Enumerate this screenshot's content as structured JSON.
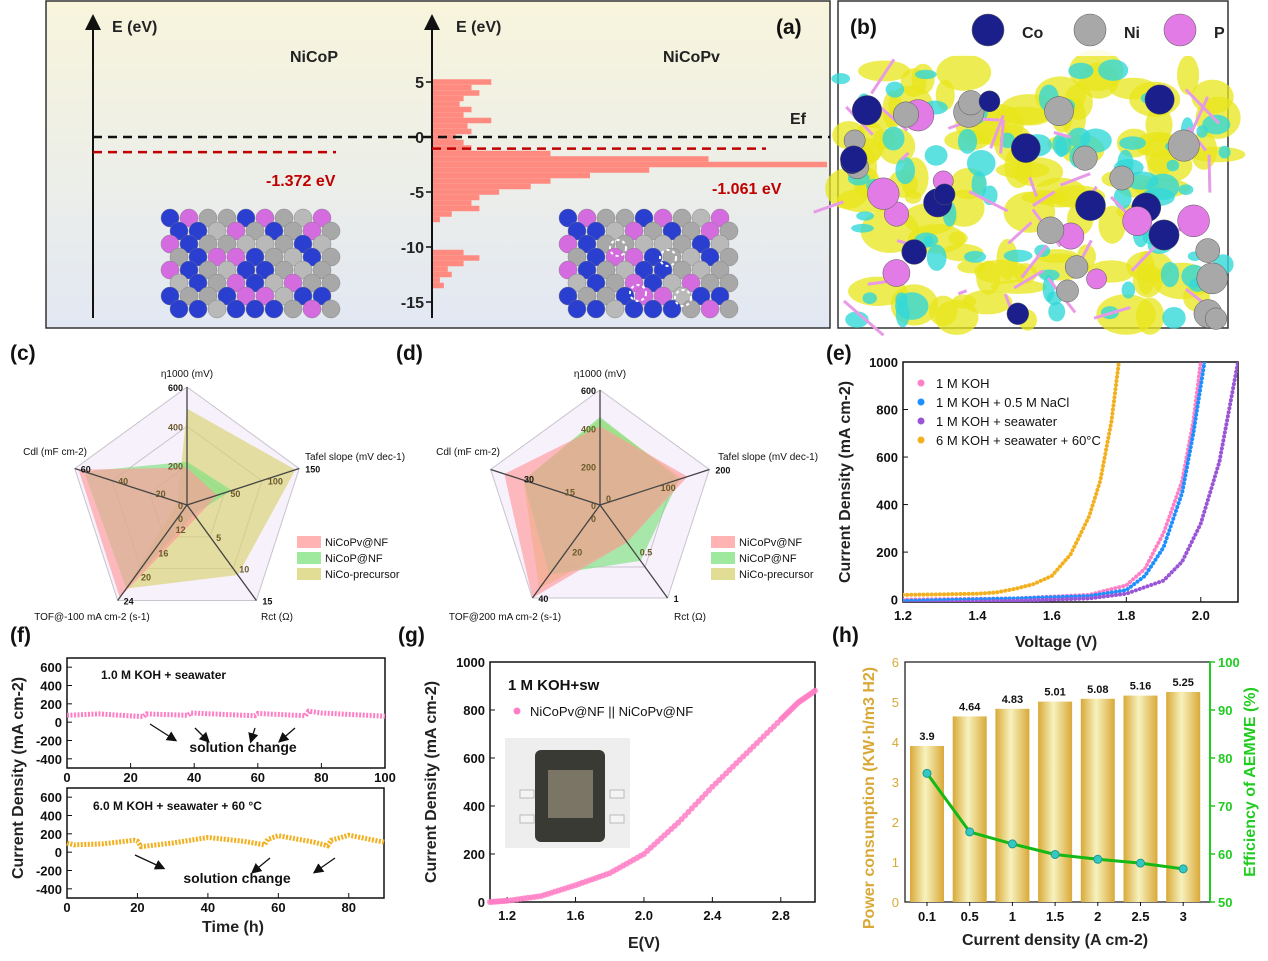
{
  "panel_labels": {
    "a": "(a)",
    "b": "(b)",
    "c": "(c)",
    "d": "(d)",
    "e": "(e)",
    "f": "(f)",
    "g": "(g)",
    "h": "(h)"
  },
  "colors": {
    "pink_dos": "#ff8a80",
    "red_dash": "#c00000",
    "co": "#1a1f8c",
    "ni": "#a8a8a8",
    "p": "#e27be6",
    "ku_orange": "#f2b01e",
    "pink": "#ff7fc6",
    "blue": "#1e8fff",
    "purple": "#9a55d6",
    "green": "#1fcc1f",
    "gold": "#d9a938",
    "teal": "#35c7c1"
  },
  "panel_a": {
    "ylabel_left": "E (eV)",
    "ylabel_right": "E (eV)",
    "title_left": "NiCoP",
    "title_right": "NiCoPv",
    "ef_label": "Ef",
    "value_left": "-1.372 eV",
    "value_right": "-1.061 eV",
    "d_band_center_left": -1.372,
    "d_band_center_right": -1.061,
    "yticks": [
      5,
      0,
      -5,
      -10,
      -15
    ],
    "dos": {
      "energy": [
        5,
        4.5,
        4,
        3.5,
        3,
        2.5,
        2,
        1.5,
        1,
        0.5,
        0,
        -0.5,
        -1,
        -1.5,
        -2,
        -2.5,
        -3,
        -3.5,
        -4,
        -4.5,
        -5,
        -5.5,
        -6,
        -6.5,
        -7,
        -7.5,
        -10.5,
        -11,
        -11.5,
        -12,
        -12.5,
        -13,
        -13.5
      ],
      "intensity": [
        0.15,
        0.1,
        0.12,
        0.08,
        0.07,
        0.1,
        0.08,
        0.15,
        0.09,
        0.1,
        0.06,
        0.08,
        0.1,
        0.3,
        0.7,
        1.0,
        0.55,
        0.4,
        0.3,
        0.25,
        0.17,
        0.12,
        0.1,
        0.12,
        0.05,
        0.02,
        0.08,
        0.12,
        0.08,
        0.04,
        0.05,
        0.02,
        0.03
      ]
    }
  },
  "panel_b": {
    "legend": [
      {
        "label": "Co",
        "color": "#1a1f8c"
      },
      {
        "label": "Ni",
        "color": "#a8a8a8"
      },
      {
        "label": "P",
        "color": "#e27be6"
      }
    ]
  },
  "chart_data": [
    {
      "id": "c",
      "type": "radar",
      "axes": [
        {
          "label": "η1000 (mV)",
          "range": [
            0,
            600
          ],
          "ticks": [
            0,
            200,
            400,
            600
          ]
        },
        {
          "label": "Tafel slope (mV dec-1)",
          "range": [
            0,
            150
          ],
          "ticks": [
            50,
            100,
            150
          ]
        },
        {
          "label": "Rct (Ω)",
          "range": [
            0,
            15
          ],
          "ticks": [
            5,
            10,
            15
          ]
        },
        {
          "label": "TOF@-100  mA cm-2  (s-1)",
          "range": [
            8,
            24
          ],
          "ticks": [
            12,
            16,
            20,
            24
          ]
        },
        {
          "label": "Cdl (mF cm-2)",
          "range": [
            0,
            60
          ],
          "ticks": [
            0,
            20,
            40,
            60
          ]
        }
      ],
      "series": [
        {
          "name": "NiCoPv@NF",
          "color": "#ff9a9a",
          "values": [
            190,
            40,
            2,
            23.5,
            58
          ]
        },
        {
          "name": "NiCoP@NF",
          "color": "#7ee27e",
          "values": [
            220,
            60,
            1.5,
            22,
            55
          ]
        },
        {
          "name": "NiCo-precursor",
          "color": "#d8d270",
          "values": [
            490,
            145,
            11,
            22,
            5
          ]
        }
      ],
      "legend": "right"
    },
    {
      "id": "d",
      "type": "radar",
      "axes": [
        {
          "label": "η1000 (mV)",
          "range": [
            0,
            600
          ],
          "ticks": [
            0,
            200,
            400,
            600
          ]
        },
        {
          "label": "Tafel slope (mV dec-1)",
          "range": [
            0,
            200
          ],
          "ticks": [
            0,
            100,
            200
          ]
        },
        {
          "label": "Rct (Ω)",
          "range": [
            0,
            1.0
          ],
          "ticks": [
            0.5,
            1.0
          ]
        },
        {
          "label": "TOF@200  mA cm-2  (s-1)",
          "range": [
            0,
            40
          ],
          "ticks": [
            20,
            40
          ]
        },
        {
          "label": "Cdl (mF cm-2)",
          "range": [
            0,
            40
          ],
          "ticks": [
            0,
            15,
            30
          ]
        }
      ],
      "series": [
        {
          "name": "NiCoPv@NF",
          "color": "#ff9a9a",
          "values": [
            410,
            160,
            0.4,
            40,
            35
          ]
        },
        {
          "name": "NiCoP@NF",
          "color": "#7ee27e",
          "values": [
            460,
            145,
            0.6,
            30,
            28
          ]
        },
        {
          "name": "NiCo-precursor",
          "color": "#d8d270",
          "values": [
            450,
            150,
            0.4,
            36,
            28
          ]
        }
      ],
      "legend": "right"
    },
    {
      "id": "e",
      "type": "line",
      "xlabel": "Voltage (V)",
      "ylabel": "Current Density (mA cm-2)",
      "xlim": [
        1.2,
        2.1
      ],
      "ylim": [
        0,
        1000
      ],
      "xticks": [
        1.2,
        1.4,
        1.6,
        1.8,
        2.0
      ],
      "yticks": [
        0,
        200,
        400,
        600,
        800,
        1000
      ],
      "series": [
        {
          "name": "1 M KOH",
          "color": "#ff7fc6",
          "x": [
            1.2,
            1.5,
            1.7,
            1.8,
            1.85,
            1.9,
            1.95,
            1.98,
            2.0
          ],
          "y": [
            0,
            5,
            20,
            60,
            130,
            280,
            500,
            750,
            1000
          ]
        },
        {
          "name": "1 M KOH + 0.5 M NaCl",
          "color": "#1e8fff",
          "x": [
            1.2,
            1.5,
            1.7,
            1.8,
            1.85,
            1.9,
            1.95,
            1.98,
            2.01
          ],
          "y": [
            -5,
            5,
            15,
            40,
            100,
            220,
            450,
            700,
            1000
          ]
        },
        {
          "name": "1 M KOH + seawater",
          "color": "#9a55d6",
          "x": [
            1.2,
            1.5,
            1.7,
            1.8,
            1.9,
            1.95,
            2.0,
            2.05,
            2.1
          ],
          "y": [
            -15,
            -5,
            5,
            25,
            80,
            160,
            320,
            580,
            1000
          ]
        },
        {
          "name": "6 M KOH + seawater + 60°C",
          "color": "#f2b01e",
          "x": [
            1.2,
            1.3,
            1.4,
            1.45,
            1.5,
            1.55,
            1.6,
            1.65,
            1.7,
            1.73,
            1.76,
            1.78
          ],
          "y": [
            20,
            22,
            25,
            30,
            45,
            65,
            100,
            190,
            350,
            500,
            750,
            1000
          ]
        }
      ],
      "legend": "top-left"
    },
    {
      "id": "f",
      "type": "line",
      "xlabel": "Time (h)",
      "ylabel": "Current Density (mA cm-2)",
      "subplots": [
        {
          "annotation": "1.0 M  KOH + seawater",
          "note": "solution change",
          "xlim": [
            0,
            100
          ],
          "ylim": [
            -500,
            700
          ],
          "xticks": [
            0,
            20,
            40,
            60,
            80,
            100
          ],
          "yticks": [
            -400,
            -200,
            0,
            200,
            400,
            600
          ],
          "color": "#ff7fc6",
          "x": [
            0,
            10,
            24,
            25,
            38,
            39,
            59,
            60,
            75,
            76,
            80,
            100
          ],
          "y": [
            75,
            90,
            60,
            90,
            75,
            100,
            70,
            95,
            70,
            120,
            100,
            65
          ]
        },
        {
          "annotation": "6.0 M  KOH + seawater + 60 °C",
          "note": "solution change",
          "xlim": [
            0,
            90
          ],
          "ylim": [
            -500,
            700
          ],
          "xticks": [
            0,
            20,
            40,
            60,
            80
          ],
          "yticks": [
            -400,
            -200,
            0,
            200,
            400,
            600
          ],
          "color": "#f2b01e",
          "x": [
            0,
            2,
            10,
            19,
            20,
            21,
            30,
            40,
            50,
            56,
            57,
            60,
            70,
            74,
            75,
            80,
            90
          ],
          "y": [
            100,
            80,
            90,
            130,
            120,
            60,
            100,
            160,
            120,
            80,
            140,
            180,
            110,
            70,
            130,
            185,
            110
          ]
        }
      ]
    },
    {
      "id": "g",
      "type": "scatter",
      "xlabel": "E(V)",
      "ylabel": "Current Density (mA cm-2)",
      "title": "1 M KOH+sw",
      "xlim": [
        1.1,
        3.0
      ],
      "ylim": [
        0,
        1000
      ],
      "xticks": [
        1.2,
        1.6,
        2.0,
        2.4,
        2.8
      ],
      "yticks": [
        0,
        200,
        400,
        600,
        800,
        1000
      ],
      "series": [
        {
          "name": "NiCoPv@NF || NiCoPv@NF",
          "color": "#ff7fc6",
          "x": [
            1.1,
            1.2,
            1.4,
            1.6,
            1.8,
            2.0,
            2.2,
            2.4,
            2.6,
            2.8,
            2.9,
            3.0
          ],
          "y": [
            0,
            5,
            25,
            70,
            120,
            200,
            330,
            480,
            620,
            760,
            830,
            880
          ]
        }
      ]
    },
    {
      "id": "h",
      "type": "bar+line",
      "xlabel": "Current density (A cm-2)",
      "ylabel": "Power consumption (KW·h/m3 H2)",
      "ylabel_right": "Efficiency of AEMWE (%)",
      "categories": [
        "0.1",
        "0.5",
        "1",
        "1.5",
        "2",
        "2.5",
        "3"
      ],
      "ylim": [
        0,
        6
      ],
      "yticks": [
        0,
        1,
        2,
        3,
        4,
        5,
        6
      ],
      "ylim_right": [
        50,
        100
      ],
      "yticks_right": [
        50,
        60,
        70,
        80,
        90,
        100
      ],
      "bar_values": [
        3.9,
        4.64,
        4.83,
        5.01,
        5.08,
        5.16,
        5.25
      ],
      "bar_labels": [
        "3.9",
        "4.64",
        "4.83",
        "5.01",
        "5.08",
        "5.16",
        "5.25"
      ],
      "efficiency": [
        76.8,
        64.6,
        62.1,
        59.9,
        58.9,
        58.1,
        56.9
      ]
    }
  ]
}
